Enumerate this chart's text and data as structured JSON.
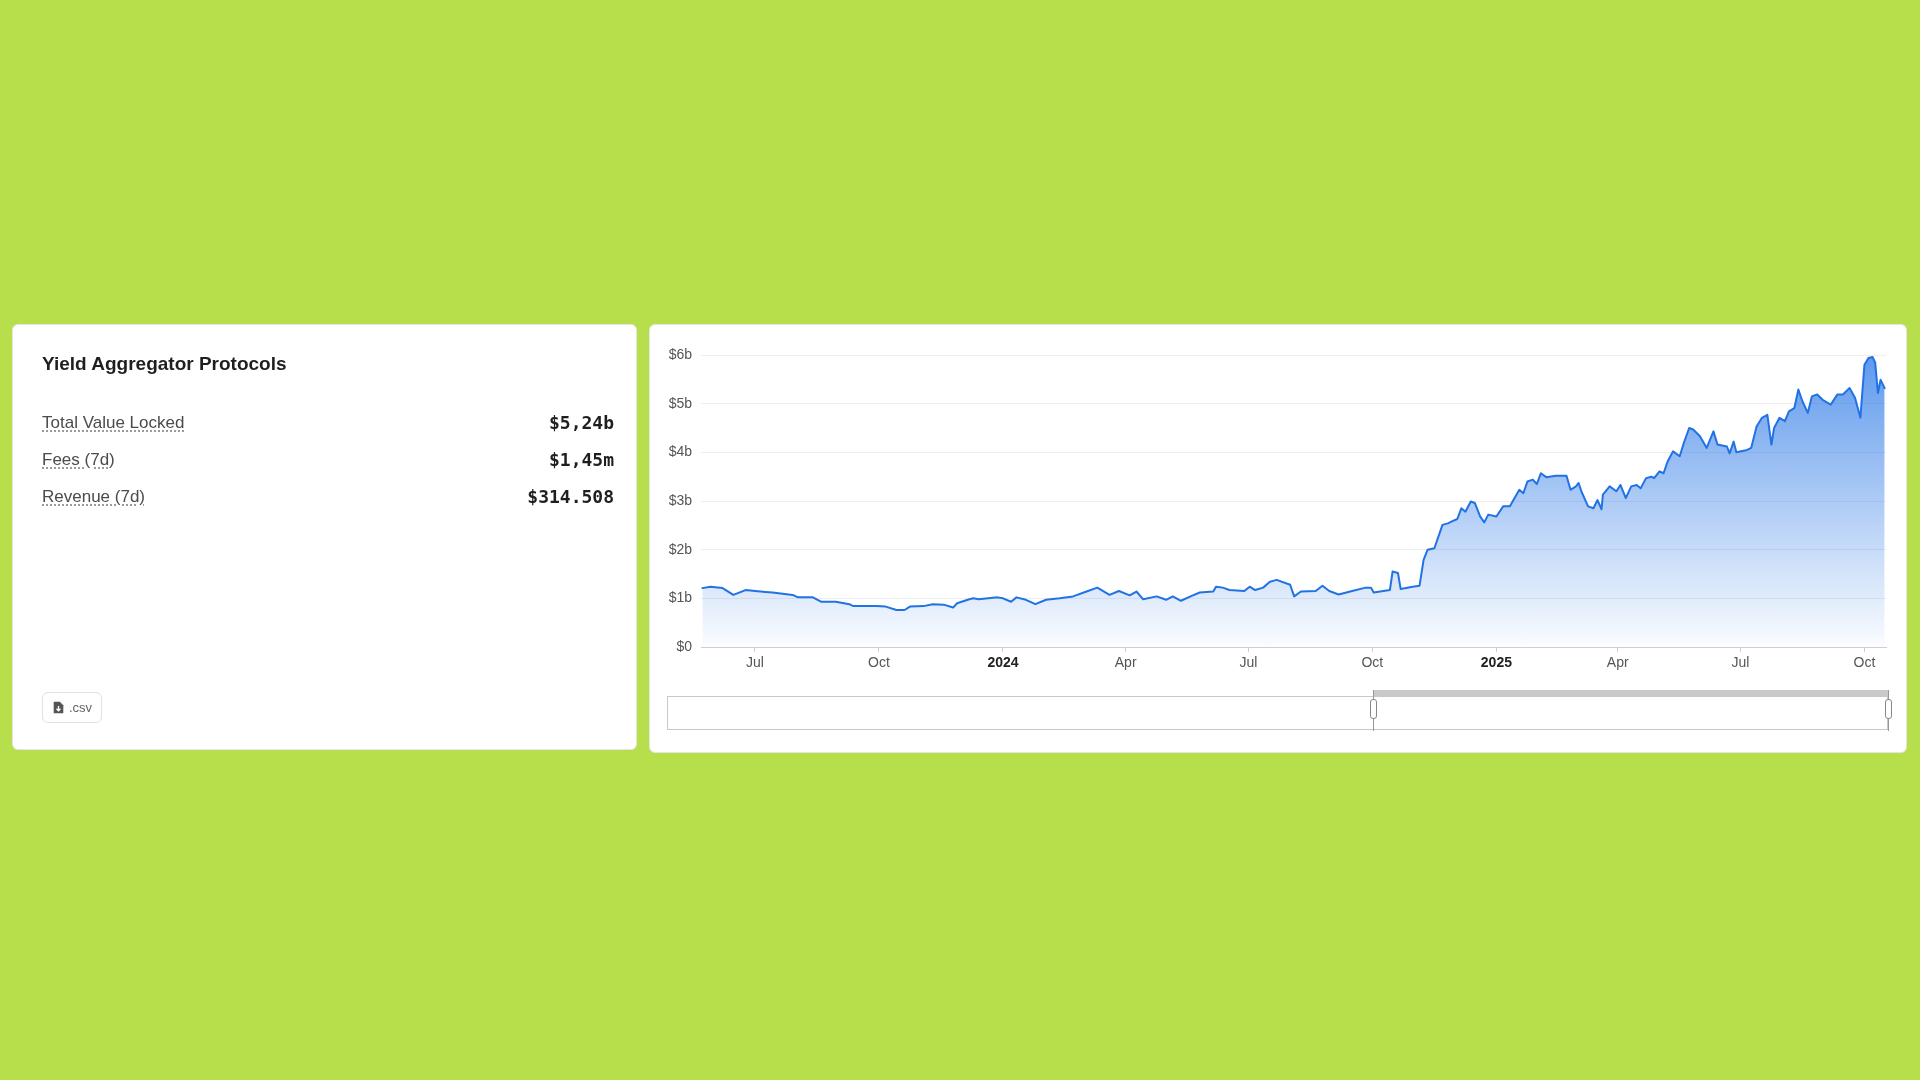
{
  "chart_data": [
    {
      "type": "other",
      "title": "Yield Aggregator Protocols",
      "annotations": [
        "Total Value Locked",
        "$5,24b",
        "Fees (7d)",
        "$1,45m",
        "Revenue (7d)",
        "$314.508",
        ".csv"
      ]
    },
    {
      "type": "area",
      "color": "#2172e5",
      "marker": "none",
      "grid": "y",
      "xlim": [
        "2023-05-22",
        "2025-10-17"
      ],
      "xticks": [
        {
          "value": "2023-07-01",
          "label": "Jul"
        },
        {
          "value": "2023-10-01",
          "label": "Oct"
        },
        {
          "value": "2024-01-01",
          "label": "2024"
        },
        {
          "value": "2024-04-01",
          "label": "Apr"
        },
        {
          "value": "2024-07-01",
          "label": "Jul"
        },
        {
          "value": "2024-10-01",
          "label": "Oct"
        },
        {
          "value": "2025-01-01",
          "label": "2025"
        },
        {
          "value": "2025-04-01",
          "label": "Apr"
        },
        {
          "value": "2025-07-01",
          "label": "Jul"
        },
        {
          "value": "2025-10-01",
          "label": "Oct"
        }
      ],
      "ylim": [
        0,
        6
      ],
      "yticks": [
        {
          "value": 0,
          "label": "$0"
        },
        {
          "value": 1,
          "label": "$1b"
        },
        {
          "value": 2,
          "label": "$2b"
        },
        {
          "value": 3,
          "label": "$3b"
        },
        {
          "value": 4,
          "label": "$4b"
        },
        {
          "value": 5,
          "label": "$5b"
        },
        {
          "value": 6,
          "label": "$6b"
        }
      ],
      "x": [
        "2023-05-23",
        "2023-05-29",
        "2023-06-07",
        "2023-06-15",
        "2023-06-24",
        "2023-07-05",
        "2023-07-14",
        "2023-07-29",
        "2023-08-02",
        "2023-08-13",
        "2023-08-19",
        "2023-08-30",
        "2023-09-09",
        "2023-09-12",
        "2023-09-29",
        "2023-10-06",
        "2023-10-14",
        "2023-10-20",
        "2023-10-24",
        "2023-11-03",
        "2023-11-10",
        "2023-11-18",
        "2023-11-25",
        "2023-11-28",
        "2023-12-07",
        "2023-12-10",
        "2023-12-14",
        "2023-12-21",
        "2023-12-28",
        "2024-01-01",
        "2024-01-07",
        "2024-01-11",
        "2024-01-18",
        "2024-01-25",
        "2024-02-02",
        "2024-02-12",
        "2024-02-22",
        "2024-03-03",
        "2024-03-11",
        "2024-03-20",
        "2024-03-27",
        "2024-04-04",
        "2024-04-09",
        "2024-04-14",
        "2024-04-24",
        "2024-05-01",
        "2024-05-06",
        "2024-05-12",
        "2024-05-20",
        "2024-05-26",
        "2024-06-05",
        "2024-06-07",
        "2024-06-12",
        "2024-06-17",
        "2024-06-28",
        "2024-07-02",
        "2024-07-06",
        "2024-07-12",
        "2024-07-17",
        "2024-07-22",
        "2024-08-01",
        "2024-08-04",
        "2024-08-09",
        "2024-08-20",
        "2024-08-25",
        "2024-08-30",
        "2024-09-06",
        "2024-09-16",
        "2024-09-26",
        "2024-09-30",
        "2024-10-02",
        "2024-10-14",
        "2024-10-16",
        "2024-10-20",
        "2024-10-22",
        "2024-10-31",
        "2024-11-05",
        "2024-11-08",
        "2024-11-11",
        "2024-11-16",
        "2024-11-22",
        "2024-11-26",
        "2024-11-29",
        "2024-12-03",
        "2024-12-06",
        "2024-12-09",
        "2024-12-13",
        "2024-12-16",
        "2024-12-20",
        "2024-12-23",
        "2024-12-26",
        "2025-01-01",
        "2025-01-06",
        "2025-01-11",
        "2025-01-18",
        "2025-01-21",
        "2025-01-24",
        "2025-01-28",
        "2025-01-31",
        "2025-02-03",
        "2025-02-07",
        "2025-02-14",
        "2025-02-22",
        "2025-02-25",
        "2025-03-01",
        "2025-03-03",
        "2025-03-05",
        "2025-03-10",
        "2025-03-14",
        "2025-03-17",
        "2025-03-20",
        "2025-03-21",
        "2025-03-26",
        "2025-03-31",
        "2025-04-03",
        "2025-04-07",
        "2025-04-11",
        "2025-04-15",
        "2025-04-18",
        "2025-04-22",
        "2025-04-26",
        "2025-04-28",
        "2025-05-02",
        "2025-05-05",
        "2025-05-08",
        "2025-05-12",
        "2025-05-17",
        "2025-05-20",
        "2025-05-24",
        "2025-05-27",
        "2025-06-01",
        "2025-06-06",
        "2025-06-11",
        "2025-06-14",
        "2025-06-21",
        "2025-06-23",
        "2025-06-26",
        "2025-06-28",
        "2025-07-06",
        "2025-07-09",
        "2025-07-13",
        "2025-07-17",
        "2025-07-21",
        "2025-07-24",
        "2025-07-26",
        "2025-07-30",
        "2025-08-03",
        "2025-08-06",
        "2025-08-10",
        "2025-08-13",
        "2025-08-16",
        "2025-08-20",
        "2025-08-23",
        "2025-08-27",
        "2025-08-31",
        "2025-09-06",
        "2025-09-11",
        "2025-09-15",
        "2025-09-20",
        "2025-09-24",
        "2025-09-28",
        "2025-10-01",
        "2025-10-04",
        "2025-10-07",
        "2025-10-09",
        "2025-10-11",
        "2025-10-13",
        "2025-10-16"
      ],
      "values": [
        1.21,
        1.24,
        1.21,
        1.07,
        1.17,
        1.14,
        1.12,
        1.07,
        1.02,
        1.02,
        0.93,
        0.93,
        0.88,
        0.84,
        0.84,
        0.83,
        0.76,
        0.76,
        0.83,
        0.84,
        0.88,
        0.87,
        0.81,
        0.9,
        0.98,
        1.0,
        0.98,
        1.0,
        1.02,
        1.0,
        0.93,
        1.02,
        0.97,
        0.88,
        0.97,
        1.0,
        1.04,
        1.14,
        1.22,
        1.07,
        1.15,
        1.06,
        1.14,
        0.98,
        1.04,
        0.97,
        1.04,
        0.95,
        1.05,
        1.12,
        1.14,
        1.24,
        1.22,
        1.17,
        1.15,
        1.24,
        1.17,
        1.22,
        1.34,
        1.38,
        1.28,
        1.04,
        1.14,
        1.15,
        1.26,
        1.15,
        1.08,
        1.15,
        1.22,
        1.22,
        1.12,
        1.17,
        1.55,
        1.52,
        1.19,
        1.24,
        1.26,
        1.79,
        2.0,
        2.03,
        2.51,
        2.54,
        2.58,
        2.63,
        2.85,
        2.78,
        2.99,
        2.96,
        2.68,
        2.56,
        2.72,
        2.68,
        2.89,
        2.89,
        3.23,
        3.16,
        3.4,
        3.44,
        3.35,
        3.57,
        3.49,
        3.52,
        3.52,
        3.23,
        3.3,
        3.37,
        3.2,
        2.89,
        2.85,
        3.02,
        2.83,
        3.13,
        3.3,
        3.2,
        3.33,
        3.06,
        3.3,
        3.33,
        3.26,
        3.47,
        3.5,
        3.47,
        3.61,
        3.57,
        3.81,
        4.02,
        3.92,
        4.19,
        4.5,
        4.47,
        4.33,
        4.09,
        4.43,
        4.16,
        4.12,
        3.98,
        4.22,
        4.0,
        4.05,
        4.09,
        4.53,
        4.71,
        4.77,
        4.16,
        4.5,
        4.71,
        4.64,
        4.84,
        4.91,
        5.29,
        5.05,
        4.81,
        5.15,
        5.19,
        5.08,
        4.98,
        5.19,
        5.19,
        5.32,
        5.12,
        4.71,
        5.8,
        5.94,
        5.96,
        5.84,
        5.22,
        5.49,
        5.32
      ]
    }
  ]
}
